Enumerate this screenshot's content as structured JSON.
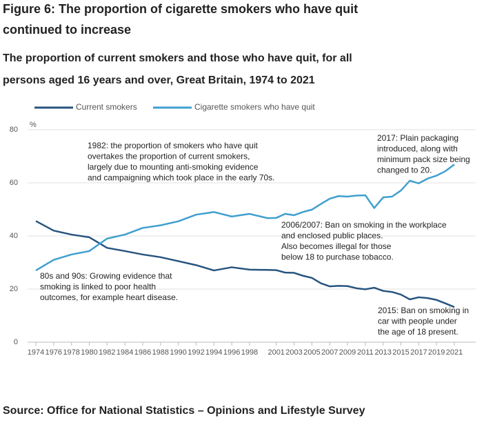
{
  "chart_data": {
    "type": "line",
    "title_lines": [
      "Figure 6: The proportion of cigarette smokers who have quit",
      "continued to increase"
    ],
    "subtitle_lines": [
      "The proportion of current smokers and those who have quit, for all",
      "persons aged 16 years and over, Great Britain, 1974 to 2021"
    ],
    "y_unit": "%",
    "x": [
      1974,
      1976,
      1978,
      1980,
      1982,
      1984,
      1986,
      1988,
      1990,
      1992,
      1994,
      1996,
      1998,
      2000,
      2001,
      2002,
      2003,
      2004,
      2005,
      2006,
      2007,
      2008,
      2009,
      2010,
      2011,
      2012,
      2013,
      2014,
      2015,
      2016,
      2017,
      2018,
      2019,
      2020,
      2021
    ],
    "series": [
      {
        "name": "Current smokers",
        "color": "#27547f",
        "values": [
          45.6,
          42,
          40.5,
          39.5,
          35.5,
          34.3,
          33,
          32,
          30.5,
          29,
          27,
          28.2,
          27.3,
          27.2,
          27.1,
          26.2,
          26.1,
          25,
          24.2,
          22.2,
          21,
          21.2,
          21.1,
          20.3,
          19.9,
          20.5,
          19.3,
          18.9,
          17.9,
          16.1,
          16.9,
          16.6,
          15.9,
          14.6,
          13.2
        ]
      },
      {
        "name": "Cigarette smokers who have quit",
        "color": "#3f9fcf",
        "values": [
          27,
          31,
          33,
          34.3,
          39,
          40.5,
          43,
          44,
          45.5,
          48,
          49,
          47.3,
          48.3,
          46.7,
          46.8,
          48.3,
          47.8,
          49,
          49.9,
          52,
          54,
          55,
          54.8,
          55.2,
          55.3,
          50.5,
          54.5,
          54.8,
          57.1,
          60.8,
          59.8,
          61.6,
          62.7,
          64.4,
          66.9
        ]
      }
    ],
    "xlim": [
      1974,
      2021
    ],
    "xticks": [
      1974,
      1976,
      1978,
      1980,
      1982,
      1984,
      1986,
      1988,
      1990,
      1992,
      1994,
      1996,
      1998,
      2001,
      2003,
      2005,
      2007,
      2009,
      2011,
      2013,
      2015,
      2017,
      2019,
      2021
    ],
    "ylim": [
      0,
      80
    ],
    "yticks": [
      0,
      20,
      40,
      60,
      80
    ],
    "grid": true,
    "annotations": [
      {
        "lines": [
          "1982: the proportion of smokers who have quit",
          "overtakes the proportion of current smokers,",
          "largely due to mounting anti-smoking evidence",
          "and campaigning which took place in the early 70s."
        ]
      },
      {
        "lines": [
          "2017: Plain packaging",
          "introduced, along with",
          "minimum pack size being",
          "changed to 20."
        ]
      },
      {
        "lines": [
          "2006/2007: Ban on smoking in the workplace",
          "and enclosed public places.",
          "Also becomes illegal for those",
          "below 18 to purchase tobacco."
        ]
      },
      {
        "lines": [
          "80s and 90s: Growing evidence that",
          "smoking is linked to poor health",
          "outcomes, for example heart disease."
        ]
      },
      {
        "lines": [
          "2015: Ban on smoking in",
          "car with people under",
          "the age of 18 present."
        ]
      }
    ],
    "source": "Source: Office for National Statistics – Opinions and Lifestyle Survey"
  }
}
